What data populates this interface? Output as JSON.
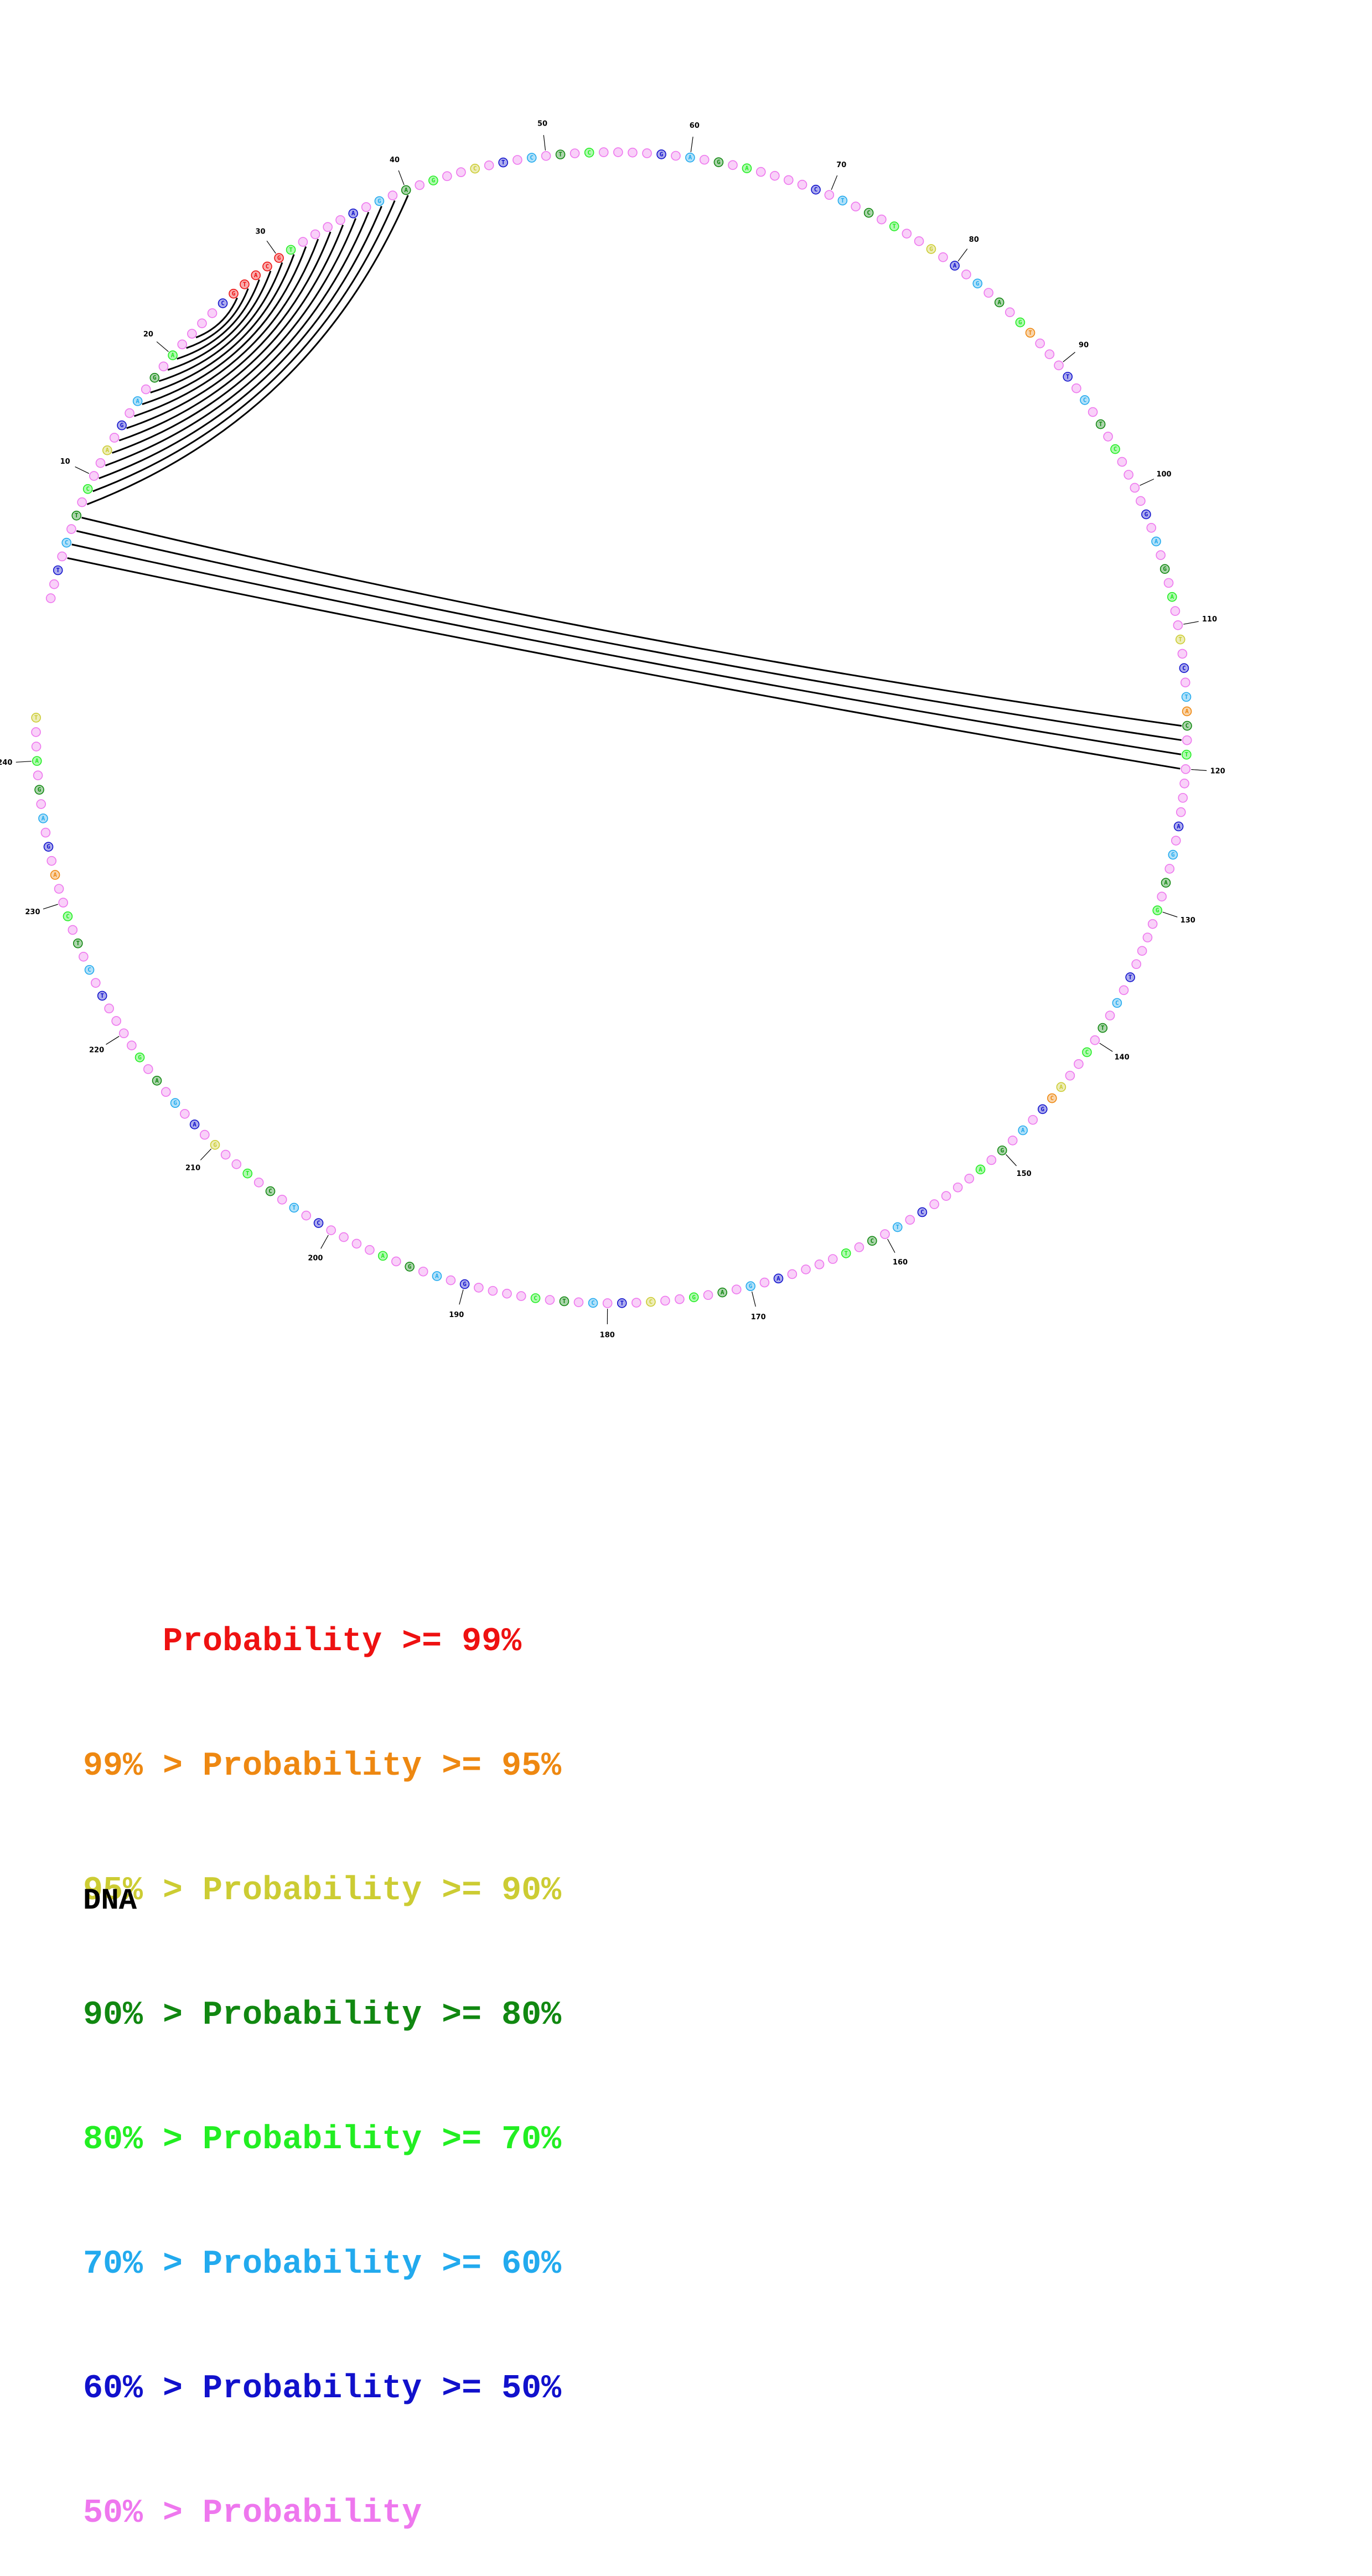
{
  "diagram": {
    "length": 243,
    "pairs": [
      [
        4,
        120
      ],
      [
        5,
        119
      ],
      [
        6,
        118
      ],
      [
        7,
        117
      ],
      [
        8,
        40
      ],
      [
        9,
        39
      ],
      [
        10,
        38
      ],
      [
        11,
        37
      ],
      [
        12,
        36
      ],
      [
        13,
        35
      ],
      [
        14,
        34
      ],
      [
        15,
        33
      ],
      [
        16,
        32
      ],
      [
        17,
        31
      ],
      [
        18,
        30
      ],
      [
        19,
        29
      ],
      [
        20,
        28
      ],
      [
        21,
        27
      ],
      [
        22,
        26
      ]
    ],
    "tick_labels": [
      "10",
      "20",
      "30",
      "40",
      "50",
      "60",
      "70",
      "80",
      "90",
      "100",
      "110",
      "120",
      "130",
      "140",
      "150",
      "160",
      "170",
      "180",
      "190",
      "200",
      "210",
      "220",
      "230",
      "240"
    ],
    "probability_colors": {
      "p99": "#ee1111",
      "p95": "#ee8811",
      "p90": "#cccc33",
      "p80": "#118811",
      "p70": "#22ee22",
      "p60": "#22aaee",
      "p50": "#1111cc",
      "low": "#ee77ee"
    }
  },
  "legend": [
    {
      "prefix": "    ",
      "text": "Probability >= 99%",
      "color": "#ee1111"
    },
    {
      "prefix": "99% > ",
      "text": "Probability >= 95%",
      "color": "#ee8811"
    },
    {
      "prefix": "95% > ",
      "text": "Probability >= 90%",
      "color": "#cccc33"
    },
    {
      "prefix": "90% > ",
      "text": "Probability >= 80%",
      "color": "#118811"
    },
    {
      "prefix": "80% > ",
      "text": "Probability >= 70%",
      "color": "#22ee22"
    },
    {
      "prefix": "70% > ",
      "text": "Probability >= 60%",
      "color": "#22aaee"
    },
    {
      "prefix": "60% > ",
      "text": "Probability >= 50%",
      "color": "#1111cc"
    },
    {
      "prefix": "50% > ",
      "text": "Probability",
      "color": "#ee77ee"
    }
  ],
  "molecule_label": "DNA"
}
